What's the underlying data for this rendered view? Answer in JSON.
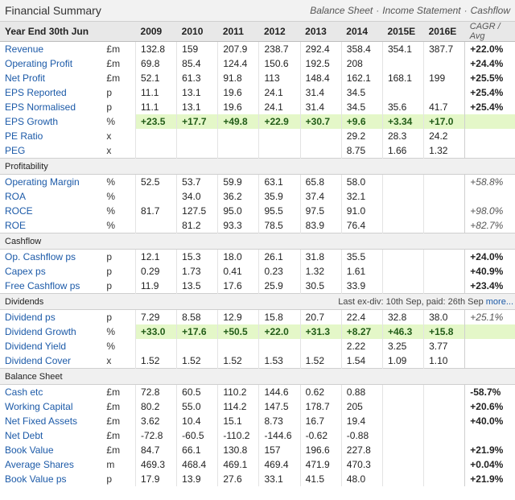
{
  "title": "Financial Summary",
  "tabs": [
    "Balance Sheet",
    "Income Statement",
    "Cashflow"
  ],
  "tab_separator": "·",
  "header": [
    "Year End 30th Jun",
    "",
    "2009",
    "2010",
    "2011",
    "2012",
    "2013",
    "2014",
    "2015E",
    "2016E",
    "CAGR / Avg"
  ],
  "rows": [
    {
      "label": "Revenue",
      "unit": "£m",
      "v": [
        "132.8",
        "159",
        "207.9",
        "238.7",
        "292.4",
        "358.4",
        "354.1",
        "387.7"
      ],
      "cagr": "+22.0%"
    },
    {
      "label": "Operating Profit",
      "unit": "£m",
      "v": [
        "69.8",
        "85.4",
        "124.4",
        "150.6",
        "192.5",
        "208",
        "",
        ""
      ],
      "cagr": "+24.4%"
    },
    {
      "label": "Net Profit",
      "unit": "£m",
      "v": [
        "52.1",
        "61.3",
        "91.8",
        "113",
        "148.4",
        "162.1",
        "168.1",
        "199"
      ],
      "cagr": "+25.5%",
      "end": true
    },
    {
      "label": "EPS Reported",
      "unit": "p",
      "v": [
        "11.1",
        "13.1",
        "19.6",
        "24.1",
        "31.4",
        "34.5",
        "",
        ""
      ],
      "cagr": "+25.4%"
    },
    {
      "label": "EPS Normalised",
      "unit": "p",
      "v": [
        "11.1",
        "13.1",
        "19.6",
        "24.1",
        "31.4",
        "34.5",
        "35.6",
        "41.7"
      ],
      "cagr": "+25.4%",
      "end": true
    },
    {
      "label": "EPS Growth",
      "unit": "%",
      "v": [
        "+23.5",
        "+17.7",
        "+49.8",
        "+22.9",
        "+30.7",
        "+9.6",
        "+3.34",
        "+17.0"
      ],
      "cagr": "",
      "growth": true
    },
    {
      "label": "PE Ratio",
      "unit": "x",
      "v": [
        "",
        "",
        "",
        "",
        "",
        "29.2",
        "28.3",
        "24.2"
      ],
      "cagr": ""
    },
    {
      "label": "PEG",
      "unit": "x",
      "v": [
        "",
        "",
        "",
        "",
        "",
        "8.75",
        "1.66",
        "1.32"
      ],
      "cagr": ""
    },
    {
      "section": "Profitability",
      "note": ""
    },
    {
      "label": "Operating Margin",
      "unit": "%",
      "v": [
        "52.5",
        "53.7",
        "59.9",
        "63.1",
        "65.8",
        "58.0",
        "",
        ""
      ],
      "cagr": "+58.8%",
      "italic": true
    },
    {
      "label": "ROA",
      "unit": "%",
      "v": [
        "",
        "34.0",
        "36.2",
        "35.9",
        "37.4",
        "32.1",
        "",
        ""
      ],
      "cagr": ""
    },
    {
      "label": "ROCE",
      "unit": "%",
      "v": [
        "81.7",
        "127.5",
        "95.0",
        "95.5",
        "97.5",
        "91.0",
        "",
        ""
      ],
      "cagr": "+98.0%",
      "italic": true
    },
    {
      "label": "ROE",
      "unit": "%",
      "v": [
        "",
        "81.2",
        "93.3",
        "78.5",
        "83.9",
        "76.4",
        "",
        ""
      ],
      "cagr": "+82.7%",
      "italic": true
    },
    {
      "section": "Cashflow",
      "note": ""
    },
    {
      "label": "Op. Cashflow ps",
      "unit": "p",
      "v": [
        "12.1",
        "15.3",
        "18.0",
        "26.1",
        "31.8",
        "35.5",
        "",
        ""
      ],
      "cagr": "+24.0%"
    },
    {
      "label": "Capex ps",
      "unit": "p",
      "v": [
        "0.29",
        "1.73",
        "0.41",
        "0.23",
        "1.32",
        "1.61",
        "",
        ""
      ],
      "cagr": "+40.9%"
    },
    {
      "label": "Free Cashflow ps",
      "unit": "p",
      "v": [
        "11.9",
        "13.5",
        "17.6",
        "25.9",
        "30.5",
        "33.9",
        "",
        ""
      ],
      "cagr": "+23.4%"
    },
    {
      "section": "Dividends",
      "note": "Last ex-div: 10th Sep, paid: 26th Sep",
      "more": "more..."
    },
    {
      "label": "Dividend ps",
      "unit": "p",
      "v": [
        "7.29",
        "8.58",
        "12.9",
        "15.8",
        "20.7",
        "22.4",
        "32.8",
        "38.0"
      ],
      "cagr": "+25.1%",
      "italic": true
    },
    {
      "label": "Dividend Growth",
      "unit": "%",
      "v": [
        "+33.0",
        "+17.6",
        "+50.5",
        "+22.0",
        "+31.3",
        "+8.27",
        "+46.3",
        "+15.8"
      ],
      "cagr": "",
      "growth": true
    },
    {
      "label": "Dividend Yield",
      "unit": "%",
      "v": [
        "",
        "",
        "",
        "",
        "",
        "2.22",
        "3.25",
        "3.77"
      ],
      "cagr": ""
    },
    {
      "label": "Dividend Cover",
      "unit": "x",
      "v": [
        "1.52",
        "1.52",
        "1.52",
        "1.53",
        "1.52",
        "1.54",
        "1.09",
        "1.10"
      ],
      "cagr": ""
    },
    {
      "section": "Balance Sheet",
      "note": ""
    },
    {
      "label": "Cash etc",
      "unit": "£m",
      "v": [
        "72.8",
        "60.5",
        "110.2",
        "144.6",
        "0.62",
        "0.88",
        "",
        ""
      ],
      "cagr": "-58.7%"
    },
    {
      "label": "Working Capital",
      "unit": "£m",
      "v": [
        "80.2",
        "55.0",
        "114.2",
        "147.5",
        "178.7",
        "205",
        "",
        ""
      ],
      "cagr": "+20.6%"
    },
    {
      "label": "Net Fixed Assets",
      "unit": "£m",
      "v": [
        "3.62",
        "10.4",
        "15.1",
        "8.73",
        "16.7",
        "19.4",
        "",
        ""
      ],
      "cagr": "+40.0%"
    },
    {
      "label": "Net Debt",
      "unit": "£m",
      "v": [
        "-72.8",
        "-60.5",
        "-110.2",
        "-144.6",
        "-0.62",
        "-0.88",
        "",
        ""
      ],
      "cagr": ""
    },
    {
      "label": "Book Value",
      "unit": "£m",
      "v": [
        "84.7",
        "66.1",
        "130.8",
        "157",
        "196.6",
        "227.8",
        "",
        ""
      ],
      "cagr": "+21.9%",
      "end": true
    },
    {
      "label": "Average Shares",
      "unit": "m",
      "v": [
        "469.3",
        "468.4",
        "469.1",
        "469.4",
        "471.9",
        "470.3",
        "",
        ""
      ],
      "cagr": "+0.04%"
    },
    {
      "label": "Book Value ps",
      "unit": "p",
      "v": [
        "17.9",
        "13.9",
        "27.6",
        "33.1",
        "41.5",
        "48.0",
        "",
        ""
      ],
      "cagr": "+21.9%"
    }
  ]
}
